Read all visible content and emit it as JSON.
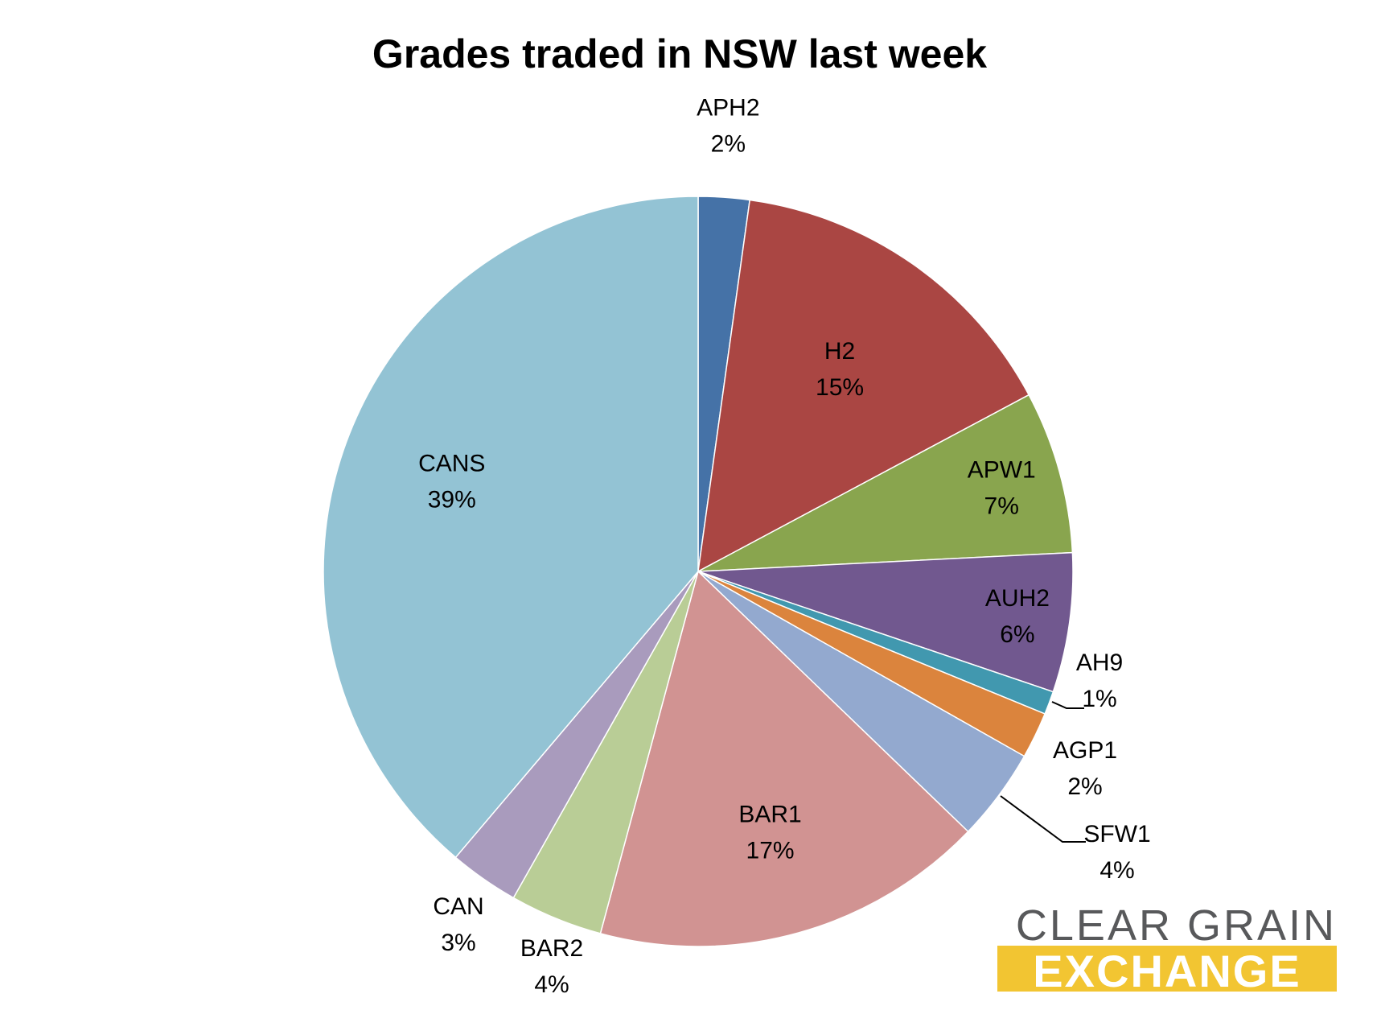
{
  "chart_data": {
    "type": "pie",
    "title": "Grades traded in NSW last week",
    "categories": [
      "APH2",
      "H2",
      "APW1",
      "AUH2",
      "AH9",
      "AGP1",
      "SFW1",
      "BAR1",
      "BAR2",
      "CAN",
      "CANS"
    ],
    "values": [
      2.2,
      15,
      7,
      6,
      1,
      2,
      4,
      17,
      4,
      3,
      38.8
    ],
    "value_labels": [
      "2%",
      "15%",
      "7%",
      "6%",
      "1%",
      "2%",
      "4%",
      "17%",
      "4%",
      "3%",
      "39%"
    ],
    "colors": [
      "#4572a7",
      "#aa4643",
      "#89a54e",
      "#71588f",
      "#4198af",
      "#db843d",
      "#93a9cf",
      "#d19392",
      "#b9cd96",
      "#a99bbd",
      "#93c3d4"
    ],
    "start_angle": "12 o'clock",
    "direction": "clockwise",
    "legend": "none",
    "data_labels": "category name and percentage on or beside each slice"
  },
  "logo": {
    "line1": "CLEAR GRAIN",
    "line2": "EXCHANGE",
    "line1_color": "#58595b",
    "line2_color": "#f2c532"
  }
}
